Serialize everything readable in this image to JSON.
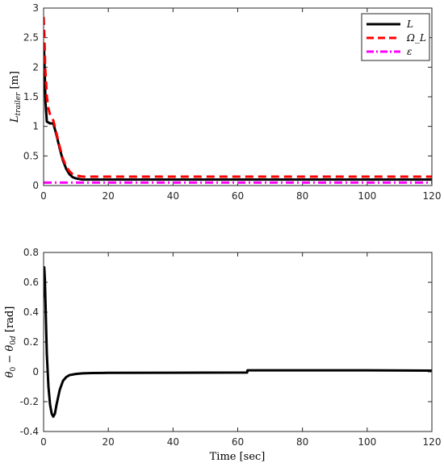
{
  "chart_data": [
    {
      "type": "line",
      "ylabel": "L_trailer [m]",
      "xlabel": "",
      "xlim": [
        0,
        120
      ],
      "ylim": [
        0,
        3
      ],
      "xticks": [
        0,
        20,
        40,
        60,
        80,
        100,
        120
      ],
      "yticks": [
        0,
        0.5,
        1,
        1.5,
        2,
        2.5,
        3
      ],
      "ytick_labels": [
        "0",
        "0.5",
        "1",
        "1.5",
        "2",
        "2.5",
        "3"
      ],
      "legend_position": "top-right",
      "series": [
        {
          "name": "L",
          "color": "#000000",
          "style": "solid",
          "x": [
            0,
            0.1,
            0.3,
            0.6,
            1.0,
            2.0,
            3.0,
            4.0,
            5.0,
            6.0,
            7.0,
            8.0,
            9.0,
            10.0,
            12.0,
            15.0,
            20.0,
            40.0,
            60.0,
            80.0,
            100.0,
            120.0
          ],
          "y": [
            1.9,
            2.4,
            2.0,
            1.4,
            1.08,
            1.05,
            1.05,
            0.85,
            0.62,
            0.42,
            0.28,
            0.19,
            0.14,
            0.12,
            0.1,
            0.1,
            0.1,
            0.1,
            0.1,
            0.1,
            0.1,
            0.1
          ]
        },
        {
          "name": "Ω_L",
          "color": "#ff0000",
          "style": "dashed",
          "x": [
            0,
            0.2,
            0.5,
            1.0,
            1.5,
            2.0,
            3.0,
            4.0,
            5.0,
            6.0,
            7.0,
            8.0,
            9.0,
            10.0,
            12.0,
            15.0,
            20.0,
            40.0,
            60.0,
            80.0,
            100.0,
            120.0
          ],
          "y": [
            2.85,
            2.6,
            2.0,
            1.5,
            1.3,
            1.2,
            1.1,
            0.88,
            0.65,
            0.45,
            0.32,
            0.24,
            0.19,
            0.17,
            0.15,
            0.15,
            0.15,
            0.15,
            0.15,
            0.15,
            0.15,
            0.15
          ]
        },
        {
          "name": "ε",
          "color": "#ff00ff",
          "style": "dashdot",
          "x": [
            0,
            120
          ],
          "y": [
            0.05,
            0.05
          ]
        }
      ]
    },
    {
      "type": "line",
      "ylabel": "θ_0 − θ_0d [rad]",
      "xlabel": "Time [sec]",
      "xlim": [
        0,
        120
      ],
      "ylim": [
        -0.4,
        0.8
      ],
      "xticks": [
        0,
        20,
        40,
        60,
        80,
        100,
        120
      ],
      "yticks": [
        -0.4,
        -0.2,
        0,
        0.2,
        0.4,
        0.6,
        0.8
      ],
      "ytick_labels": [
        "-0.4",
        "-0.2",
        "0",
        "0.2",
        "0.4",
        "0.6",
        "0.8"
      ],
      "series": [
        {
          "color": "#000000",
          "style": "solid",
          "x": [
            0,
            0.2,
            0.4,
            0.6,
            0.8,
            1.0,
            1.5,
            2.0,
            2.5,
            3.0,
            3.5,
            4.0,
            5.0,
            6.0,
            7.0,
            8.0,
            10.0,
            12.0,
            15.0,
            20.0,
            40.0,
            62.9,
            63.0,
            80.0,
            100.0,
            120.0
          ],
          "y": [
            0.5,
            0.7,
            0.62,
            0.45,
            0.28,
            0.12,
            -0.1,
            -0.22,
            -0.28,
            -0.3,
            -0.28,
            -0.22,
            -0.12,
            -0.06,
            -0.035,
            -0.022,
            -0.014,
            -0.01,
            -0.008,
            -0.007,
            -0.006,
            -0.005,
            0.01,
            0.01,
            0.01,
            0.008
          ]
        }
      ]
    }
  ]
}
